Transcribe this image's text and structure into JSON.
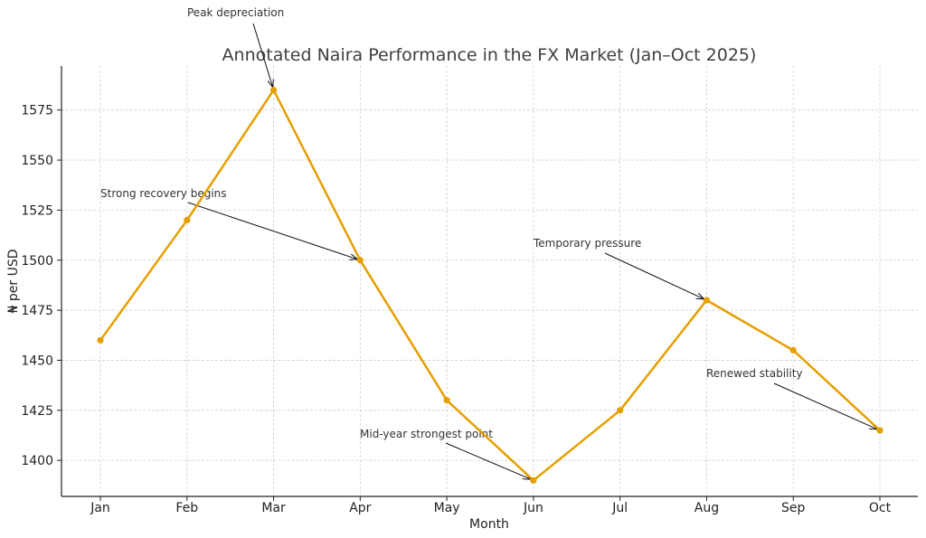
{
  "chart_data": {
    "type": "line",
    "title": "Annotated Naira Performance in the FX Market (Jan–Oct 2025)",
    "xlabel": "Month",
    "ylabel": "₦ per USD",
    "categories": [
      "Jan",
      "Feb",
      "Mar",
      "Apr",
      "May",
      "Jun",
      "Jul",
      "Aug",
      "Sep",
      "Oct"
    ],
    "series": [
      {
        "values": [
          1460,
          1520,
          1585,
          1500,
          1430,
          1390,
          1425,
          1480,
          1455,
          1415
        ]
      }
    ],
    "y_ticks": [
      1400,
      1425,
      1450,
      1475,
      1500,
      1525,
      1550,
      1575
    ],
    "ylim": [
      1382,
      1597
    ],
    "grid": true,
    "line_color": "#E69F00",
    "annotations": [
      {
        "text": "Peak depreciation",
        "target_category": "Mar",
        "target_value": 1585
      },
      {
        "text": "Strong recovery begins",
        "target_category": "Apr",
        "target_value": 1500
      },
      {
        "text": "Temporary pressure",
        "target_category": "Aug",
        "target_value": 1480
      },
      {
        "text": "Mid-year strongest point",
        "target_category": "Jun",
        "target_value": 1390
      },
      {
        "text": "Renewed stability",
        "target_category": "Oct",
        "target_value": 1415
      }
    ]
  }
}
